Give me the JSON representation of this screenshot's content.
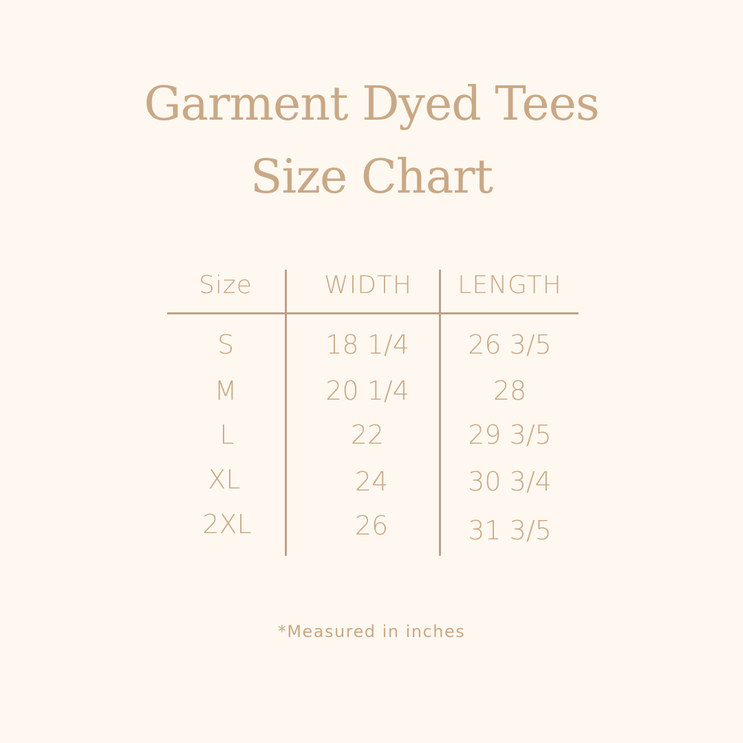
{
  "title": {
    "line1": "Garment Dyed Tees",
    "line2": "Size Chart"
  },
  "table": {
    "headers": [
      "Size",
      "WIDTH",
      "LENGTH"
    ],
    "rows": [
      [
        "S",
        "18 1/4",
        "26 3/5"
      ],
      [
        "M",
        "20 1/4",
        "28"
      ],
      [
        "L",
        "22",
        "29 3/5"
      ],
      [
        "XL",
        "24",
        "30 3/4"
      ],
      [
        "2XL",
        "26",
        "31 3/5"
      ]
    ]
  },
  "footnote": "*Measured in inches",
  "colors": {
    "background": "#FEF8F0",
    "text": "#C9A886",
    "lines": "#BCA08C"
  }
}
